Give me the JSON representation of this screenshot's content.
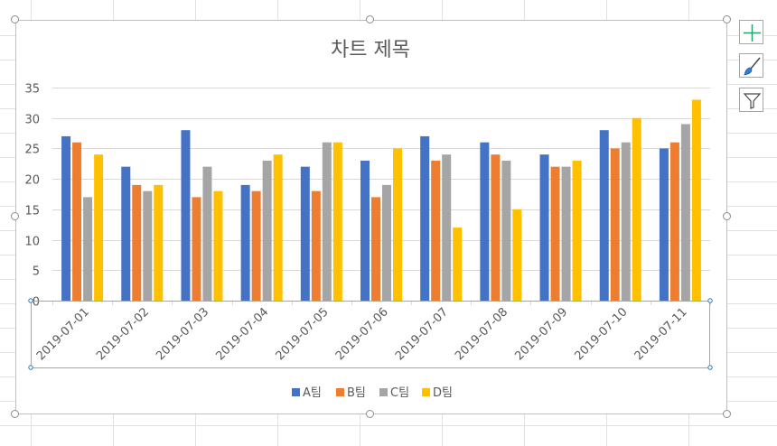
{
  "chart_data": {
    "type": "bar",
    "title": "차트 제목",
    "categories": [
      "2019-07-01",
      "2019-07-02",
      "2019-07-03",
      "2019-07-04",
      "2019-07-05",
      "2019-07-06",
      "2019-07-07",
      "2019-07-08",
      "2019-07-09",
      "2019-07-10",
      "2019-07-11"
    ],
    "series": [
      {
        "name": "A팀",
        "color": "#4472c4",
        "values": [
          27,
          22,
          28,
          19,
          22,
          23,
          27,
          26,
          24,
          28,
          25
        ]
      },
      {
        "name": "B팀",
        "color": "#ed7d31",
        "values": [
          26,
          19,
          17,
          18,
          18,
          17,
          23,
          24,
          22,
          25,
          26
        ]
      },
      {
        "name": "C팀",
        "color": "#a5a5a5",
        "values": [
          17,
          18,
          22,
          23,
          26,
          19,
          24,
          23,
          22,
          26,
          29
        ]
      },
      {
        "name": "D팀",
        "color": "#ffc000",
        "values": [
          24,
          19,
          18,
          24,
          26,
          25,
          12,
          15,
          23,
          30,
          33
        ]
      }
    ],
    "ylim": [
      0,
      35
    ],
    "yticks": [
      0,
      5,
      10,
      15,
      20,
      25,
      30,
      35
    ],
    "grid": true,
    "legend_position": "bottom"
  },
  "side_buttons": {
    "chart_elements": "plus-icon",
    "chart_styles": "brush-icon",
    "chart_filters": "filter-icon"
  }
}
